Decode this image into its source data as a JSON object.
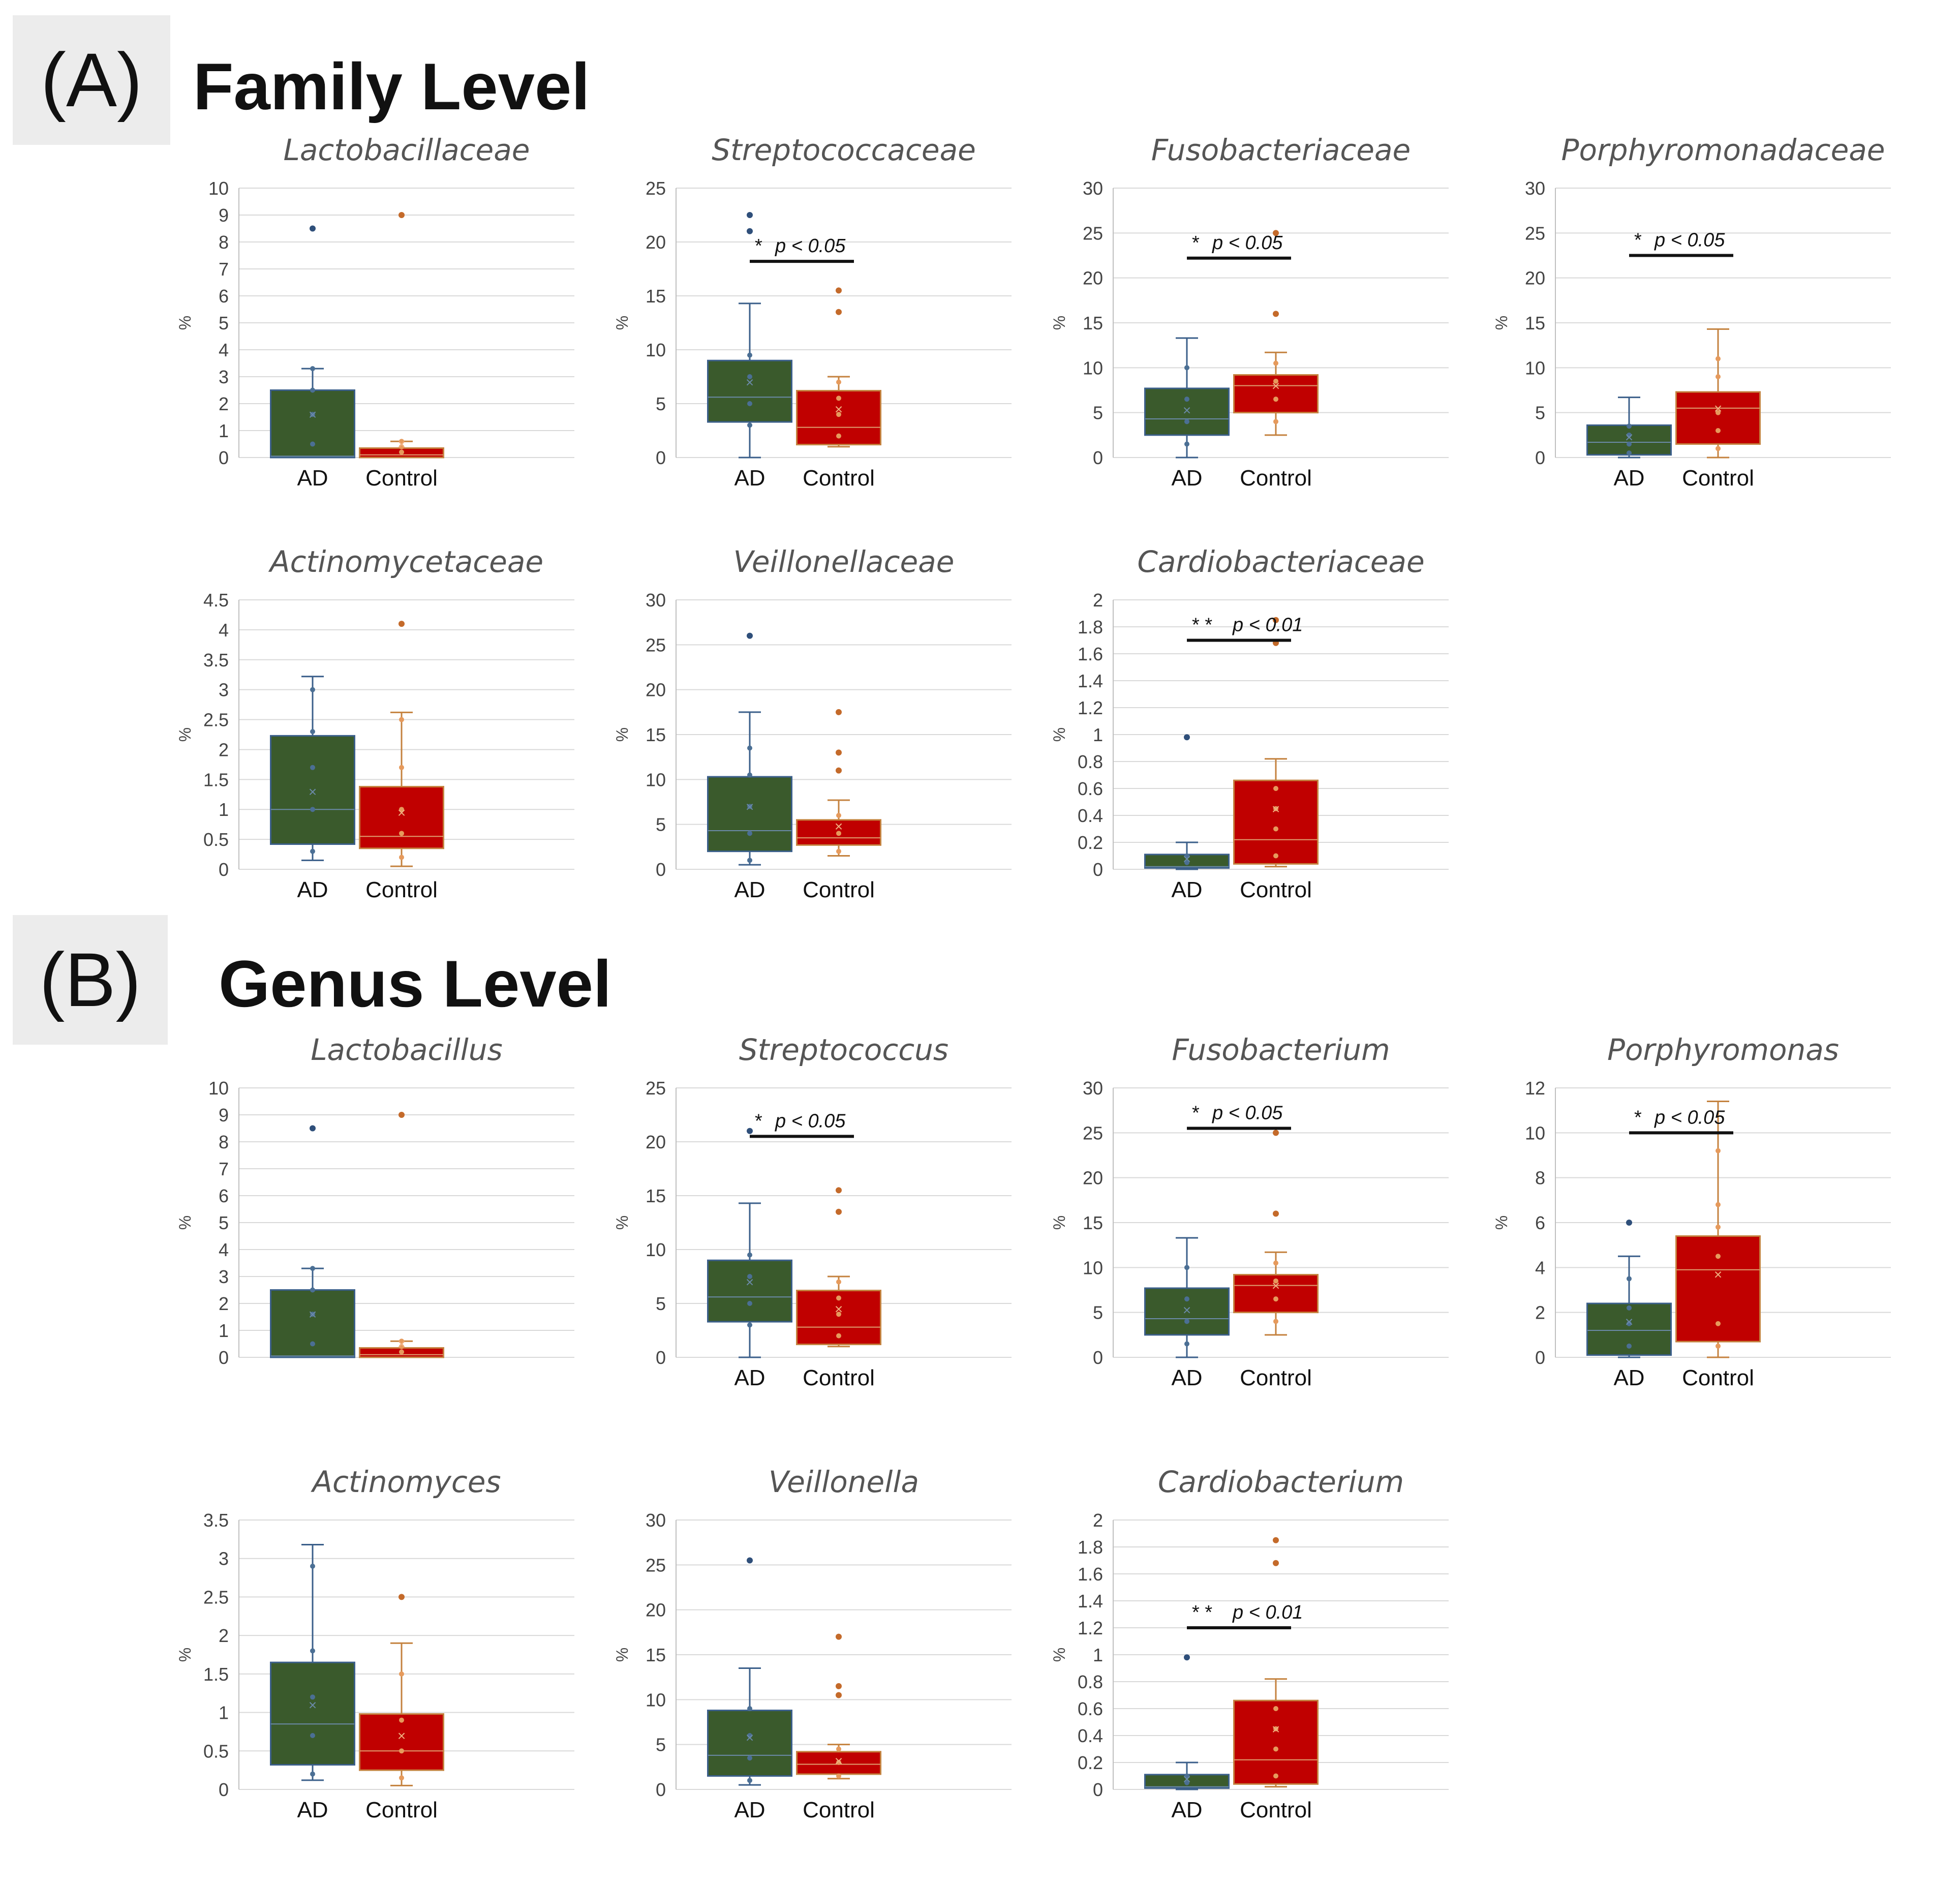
{
  "sections": [
    {
      "label": "(A)",
      "title": "Family Level"
    },
    {
      "label": "(B)",
      "title": "Genus Level"
    }
  ],
  "colors": {
    "ad": "#3a5a2c",
    "control": "#c00000",
    "grid": "#d9d9d9"
  },
  "chart_data": [
    {
      "type": "box",
      "title": "Lactobacillaceae",
      "ylabel": "%",
      "ylim": [
        0,
        10
      ],
      "ticks": [
        "0",
        "1",
        "2",
        "3",
        "4",
        "5",
        "6",
        "7",
        "8",
        "9",
        "10"
      ],
      "categories": [
        "AD",
        "Control"
      ],
      "boxes": [
        {
          "name": "AD",
          "min": 0,
          "q1": 0,
          "median": 0.05,
          "q3": 2.5,
          "max": 3.3,
          "mean": 1.6,
          "outliers": [
            8.5
          ],
          "points": [
            0.5,
            1.6,
            2.5,
            3.3
          ]
        },
        {
          "name": "Control",
          "min": 0,
          "q1": 0,
          "median": 0.1,
          "q3": 0.35,
          "max": 0.6,
          "mean": 0.5,
          "outliers": [
            9.0
          ],
          "points": [
            0.2,
            0.4,
            0.6
          ]
        }
      ],
      "significance": null
    },
    {
      "type": "box",
      "title": "Streptococcaceae",
      "ylabel": "%",
      "ylim": [
        0,
        25
      ],
      "ticks": [
        "0",
        "5",
        "10",
        "15",
        "20",
        "25"
      ],
      "categories": [
        "AD",
        "Control"
      ],
      "boxes": [
        {
          "name": "AD",
          "min": 0,
          "q1": 3.3,
          "median": 5.6,
          "q3": 9.0,
          "max": 14.3,
          "mean": 7.0,
          "outliers": [
            21.0,
            22.5
          ],
          "points": [
            3.0,
            5.0,
            7.5,
            9.5
          ]
        },
        {
          "name": "Control",
          "min": 1.0,
          "q1": 1.2,
          "median": 2.8,
          "q3": 6.2,
          "max": 7.5,
          "mean": 4.5,
          "outliers": [
            13.5,
            15.5
          ],
          "points": [
            2.0,
            4.0,
            5.5,
            7.0
          ]
        }
      ],
      "significance": {
        "stars": "*",
        "p": "p < 0.05",
        "y": 18.2
      }
    },
    {
      "type": "box",
      "title": "Fusobacteriaceae",
      "ylabel": "%",
      "ylim": [
        0,
        30
      ],
      "ticks": [
        "0",
        "5",
        "10",
        "15",
        "20",
        "25",
        "30"
      ],
      "categories": [
        "AD",
        "Control"
      ],
      "boxes": [
        {
          "name": "AD",
          "min": 0,
          "q1": 2.5,
          "median": 4.3,
          "q3": 7.7,
          "max": 13.3,
          "mean": 5.3,
          "outliers": [],
          "points": [
            1.5,
            4.0,
            6.5,
            10.0
          ]
        },
        {
          "name": "Control",
          "min": 2.5,
          "q1": 5.0,
          "median": 8.0,
          "q3": 9.2,
          "max": 11.7,
          "mean": 8.0,
          "outliers": [
            16.0,
            25.0
          ],
          "points": [
            4.0,
            6.5,
            8.5,
            10.5
          ]
        }
      ],
      "significance": {
        "stars": "*",
        "p": "p < 0.05",
        "y": 22.2
      }
    },
    {
      "type": "box",
      "title": "Porphyromonadaceae",
      "ylabel": "%",
      "ylim": [
        0,
        30
      ],
      "ticks": [
        "0",
        "5",
        "10",
        "15",
        "20",
        "25",
        "30"
      ],
      "categories": [
        "AD",
        "Control"
      ],
      "boxes": [
        {
          "name": "AD",
          "min": 0,
          "q1": 0.3,
          "median": 1.7,
          "q3": 3.6,
          "max": 6.7,
          "mean": 2.3,
          "outliers": [],
          "points": [
            0.5,
            1.5,
            2.5,
            3.5
          ]
        },
        {
          "name": "Control",
          "min": 0,
          "q1": 1.5,
          "median": 5.5,
          "q3": 7.3,
          "max": 14.3,
          "mean": 5.5,
          "outliers": [],
          "points": [
            1.0,
            3.0,
            5.0,
            9.0,
            11.0
          ]
        }
      ],
      "significance": {
        "stars": "*",
        "p": "p < 0.05",
        "y": 22.5
      }
    },
    {
      "type": "box",
      "title": "Actinomycetaceae",
      "ylabel": "%",
      "ylim": [
        0,
        4.5
      ],
      "ticks": [
        "0",
        "0.5",
        "1",
        "1.5",
        "2",
        "2.5",
        "3",
        "3.5",
        "4",
        "4.5"
      ],
      "categories": [
        "AD",
        "Control"
      ],
      "boxes": [
        {
          "name": "AD",
          "min": 0.15,
          "q1": 0.42,
          "median": 1.0,
          "q3": 2.23,
          "max": 3.22,
          "mean": 1.3,
          "outliers": [],
          "points": [
            0.3,
            1.0,
            1.7,
            2.3,
            3.0
          ]
        },
        {
          "name": "Control",
          "min": 0.05,
          "q1": 0.35,
          "median": 0.55,
          "q3": 1.38,
          "max": 2.62,
          "mean": 0.95,
          "outliers": [
            4.1
          ],
          "points": [
            0.2,
            0.6,
            1.0,
            1.7,
            2.5
          ]
        }
      ],
      "significance": null
    },
    {
      "type": "box",
      "title": "Veillonellaceae",
      "ylabel": "%",
      "ylim": [
        0,
        30
      ],
      "ticks": [
        "0",
        "5",
        "10",
        "15",
        "20",
        "25",
        "30"
      ],
      "categories": [
        "AD",
        "Control"
      ],
      "boxes": [
        {
          "name": "AD",
          "min": 0.5,
          "q1": 2.0,
          "median": 4.3,
          "q3": 10.3,
          "max": 17.5,
          "mean": 7.0,
          "outliers": [
            26.0
          ],
          "points": [
            1.0,
            4.0,
            7.0,
            10.5,
            13.5
          ]
        },
        {
          "name": "Control",
          "min": 1.5,
          "q1": 2.7,
          "median": 3.5,
          "q3": 5.5,
          "max": 7.7,
          "mean": 4.8,
          "outliers": [
            11.0,
            13.0,
            17.5
          ],
          "points": [
            2.0,
            4.0,
            6.0
          ]
        }
      ],
      "significance": null
    },
    {
      "type": "box",
      "title": "Cardiobacteriaceae",
      "ylabel": "%",
      "ylim": [
        0,
        2
      ],
      "ticks": [
        "0",
        "0.2",
        "0.4",
        "0.6",
        "0.8",
        "1",
        "1.2",
        "1.4",
        "1.6",
        "1.8",
        "2"
      ],
      "categories": [
        "AD",
        "Control"
      ],
      "boxes": [
        {
          "name": "AD",
          "min": 0,
          "q1": 0.01,
          "median": 0.02,
          "q3": 0.11,
          "max": 0.2,
          "mean": 0.08,
          "outliers": [
            0.98
          ],
          "points": [
            0.05,
            0.1
          ]
        },
        {
          "name": "Control",
          "min": 0.02,
          "q1": 0.04,
          "median": 0.22,
          "q3": 0.66,
          "max": 0.82,
          "mean": 0.45,
          "outliers": [
            1.68,
            1.85
          ],
          "points": [
            0.1,
            0.3,
            0.45,
            0.6
          ]
        }
      ],
      "significance": {
        "stars": "* *",
        "p": "p < 0.01",
        "y": 1.7
      }
    },
    {
      "type": "box",
      "title": "Lactobacillus",
      "ylabel": "%",
      "ylim": [
        0,
        10
      ],
      "ticks": [
        "0",
        "1",
        "2",
        "3",
        "4",
        "5",
        "6",
        "7",
        "8",
        "9",
        "10"
      ],
      "categories": [
        "",
        ""
      ],
      "boxes": [
        {
          "name": "AD",
          "min": 0,
          "q1": 0,
          "median": 0.05,
          "q3": 2.5,
          "max": 3.3,
          "mean": 1.6,
          "outliers": [
            8.5
          ],
          "points": [
            0.5,
            1.6,
            2.5,
            3.3
          ]
        },
        {
          "name": "Control",
          "min": 0,
          "q1": 0,
          "median": 0.1,
          "q3": 0.35,
          "max": 0.6,
          "mean": 0.5,
          "outliers": [
            9.0
          ],
          "points": [
            0.2,
            0.4,
            0.6
          ]
        }
      ],
      "significance": null
    },
    {
      "type": "box",
      "title": "Streptococcus",
      "ylabel": "%",
      "ylim": [
        0,
        25
      ],
      "ticks": [
        "0",
        "5",
        "10",
        "15",
        "20",
        "25"
      ],
      "categories": [
        "AD",
        "Control"
      ],
      "boxes": [
        {
          "name": "AD",
          "min": 0,
          "q1": 3.3,
          "median": 5.6,
          "q3": 9.0,
          "max": 14.3,
          "mean": 7.0,
          "outliers": [
            21.0
          ],
          "points": [
            3.0,
            5.0,
            7.5,
            9.5
          ]
        },
        {
          "name": "Control",
          "min": 1.0,
          "q1": 1.2,
          "median": 2.8,
          "q3": 6.2,
          "max": 7.5,
          "mean": 4.5,
          "outliers": [
            13.5,
            15.5
          ],
          "points": [
            2.0,
            4.0,
            5.5,
            7.0
          ]
        }
      ],
      "significance": {
        "stars": "*",
        "p": "p < 0.05",
        "y": 20.5
      }
    },
    {
      "type": "box",
      "title": "Fusobacterium",
      "ylabel": "%",
      "ylim": [
        0,
        30
      ],
      "ticks": [
        "0",
        "5",
        "10",
        "15",
        "20",
        "25",
        "30"
      ],
      "categories": [
        "AD",
        "Control"
      ],
      "boxes": [
        {
          "name": "AD",
          "min": 0,
          "q1": 2.5,
          "median": 4.3,
          "q3": 7.7,
          "max": 13.3,
          "mean": 5.3,
          "outliers": [],
          "points": [
            1.5,
            4.0,
            6.5,
            10.0
          ]
        },
        {
          "name": "Control",
          "min": 2.5,
          "q1": 5.0,
          "median": 8.0,
          "q3": 9.2,
          "max": 11.7,
          "mean": 8.0,
          "outliers": [
            16.0,
            25.0
          ],
          "points": [
            4.0,
            6.5,
            8.5,
            10.5
          ]
        }
      ],
      "significance": {
        "stars": "*",
        "p": "p < 0.05",
        "y": 25.5
      }
    },
    {
      "type": "box",
      "title": "Porphyromonas",
      "ylabel": "%",
      "ylim": [
        0,
        12
      ],
      "ticks": [
        "0",
        "2",
        "4",
        "6",
        "8",
        "10",
        "12"
      ],
      "categories": [
        "AD",
        "Control"
      ],
      "boxes": [
        {
          "name": "AD",
          "min": 0,
          "q1": 0.1,
          "median": 1.2,
          "q3": 2.4,
          "max": 4.5,
          "mean": 1.6,
          "outliers": [
            6.0
          ],
          "points": [
            0.5,
            1.5,
            2.2,
            3.5
          ]
        },
        {
          "name": "Control",
          "min": 0,
          "q1": 0.7,
          "median": 3.9,
          "q3": 5.4,
          "max": 11.4,
          "mean": 3.7,
          "outliers": [],
          "points": [
            0.5,
            1.5,
            4.5,
            5.8,
            6.8,
            9.2
          ]
        }
      ],
      "significance": {
        "stars": "*",
        "p": "p < 0.05",
        "y": 10.0
      }
    },
    {
      "type": "box",
      "title": "Actinomyces",
      "ylabel": "%",
      "ylim": [
        0,
        3.5
      ],
      "ticks": [
        "0",
        "0.5",
        "1",
        "1.5",
        "2",
        "2.5",
        "3",
        "3.5"
      ],
      "categories": [
        "AD",
        "Control"
      ],
      "boxes": [
        {
          "name": "AD",
          "min": 0.12,
          "q1": 0.32,
          "median": 0.85,
          "q3": 1.65,
          "max": 3.18,
          "mean": 1.1,
          "outliers": [],
          "points": [
            0.2,
            0.7,
            1.2,
            1.8,
            2.9
          ]
        },
        {
          "name": "Control",
          "min": 0.05,
          "q1": 0.25,
          "median": 0.5,
          "q3": 0.98,
          "max": 1.9,
          "mean": 0.7,
          "outliers": [
            2.5
          ],
          "points": [
            0.15,
            0.5,
            0.9,
            1.5
          ]
        }
      ],
      "significance": null
    },
    {
      "type": "box",
      "title": "Veillonella",
      "ylabel": "%",
      "ylim": [
        0,
        30
      ],
      "ticks": [
        "0",
        "5",
        "10",
        "15",
        "20",
        "25",
        "30"
      ],
      "categories": [
        "AD",
        "Control"
      ],
      "boxes": [
        {
          "name": "AD",
          "min": 0.5,
          "q1": 1.5,
          "median": 3.8,
          "q3": 8.8,
          "max": 13.5,
          "mean": 5.8,
          "outliers": [
            25.5
          ],
          "points": [
            1.0,
            3.5,
            6.0,
            9.0
          ]
        },
        {
          "name": "Control",
          "min": 1.2,
          "q1": 1.7,
          "median": 2.8,
          "q3": 4.2,
          "max": 5.0,
          "mean": 3.2,
          "outliers": [
            10.5,
            11.5,
            17.0
          ],
          "points": [
            1.5,
            3.0,
            4.5
          ]
        }
      ],
      "significance": null
    },
    {
      "type": "box",
      "title": "Cardiobacterium",
      "ylabel": "%",
      "ylim": [
        0,
        2
      ],
      "ticks": [
        "0",
        "0.2",
        "0.4",
        "0.6",
        "0.8",
        "1",
        "1.2",
        "1.4",
        "1.6",
        "1.8",
        "2"
      ],
      "categories": [
        "AD",
        "Control"
      ],
      "boxes": [
        {
          "name": "AD",
          "min": 0,
          "q1": 0.01,
          "median": 0.02,
          "q3": 0.11,
          "max": 0.2,
          "mean": 0.08,
          "outliers": [
            0.98
          ],
          "points": [
            0.05,
            0.1
          ]
        },
        {
          "name": "Control",
          "min": 0.02,
          "q1": 0.04,
          "median": 0.22,
          "q3": 0.66,
          "max": 0.82,
          "mean": 0.45,
          "outliers": [
            1.68,
            1.85
          ],
          "points": [
            0.1,
            0.3,
            0.45,
            0.6
          ]
        }
      ],
      "significance": {
        "stars": "* *",
        "p": "p < 0.01",
        "y": 1.2
      }
    }
  ]
}
